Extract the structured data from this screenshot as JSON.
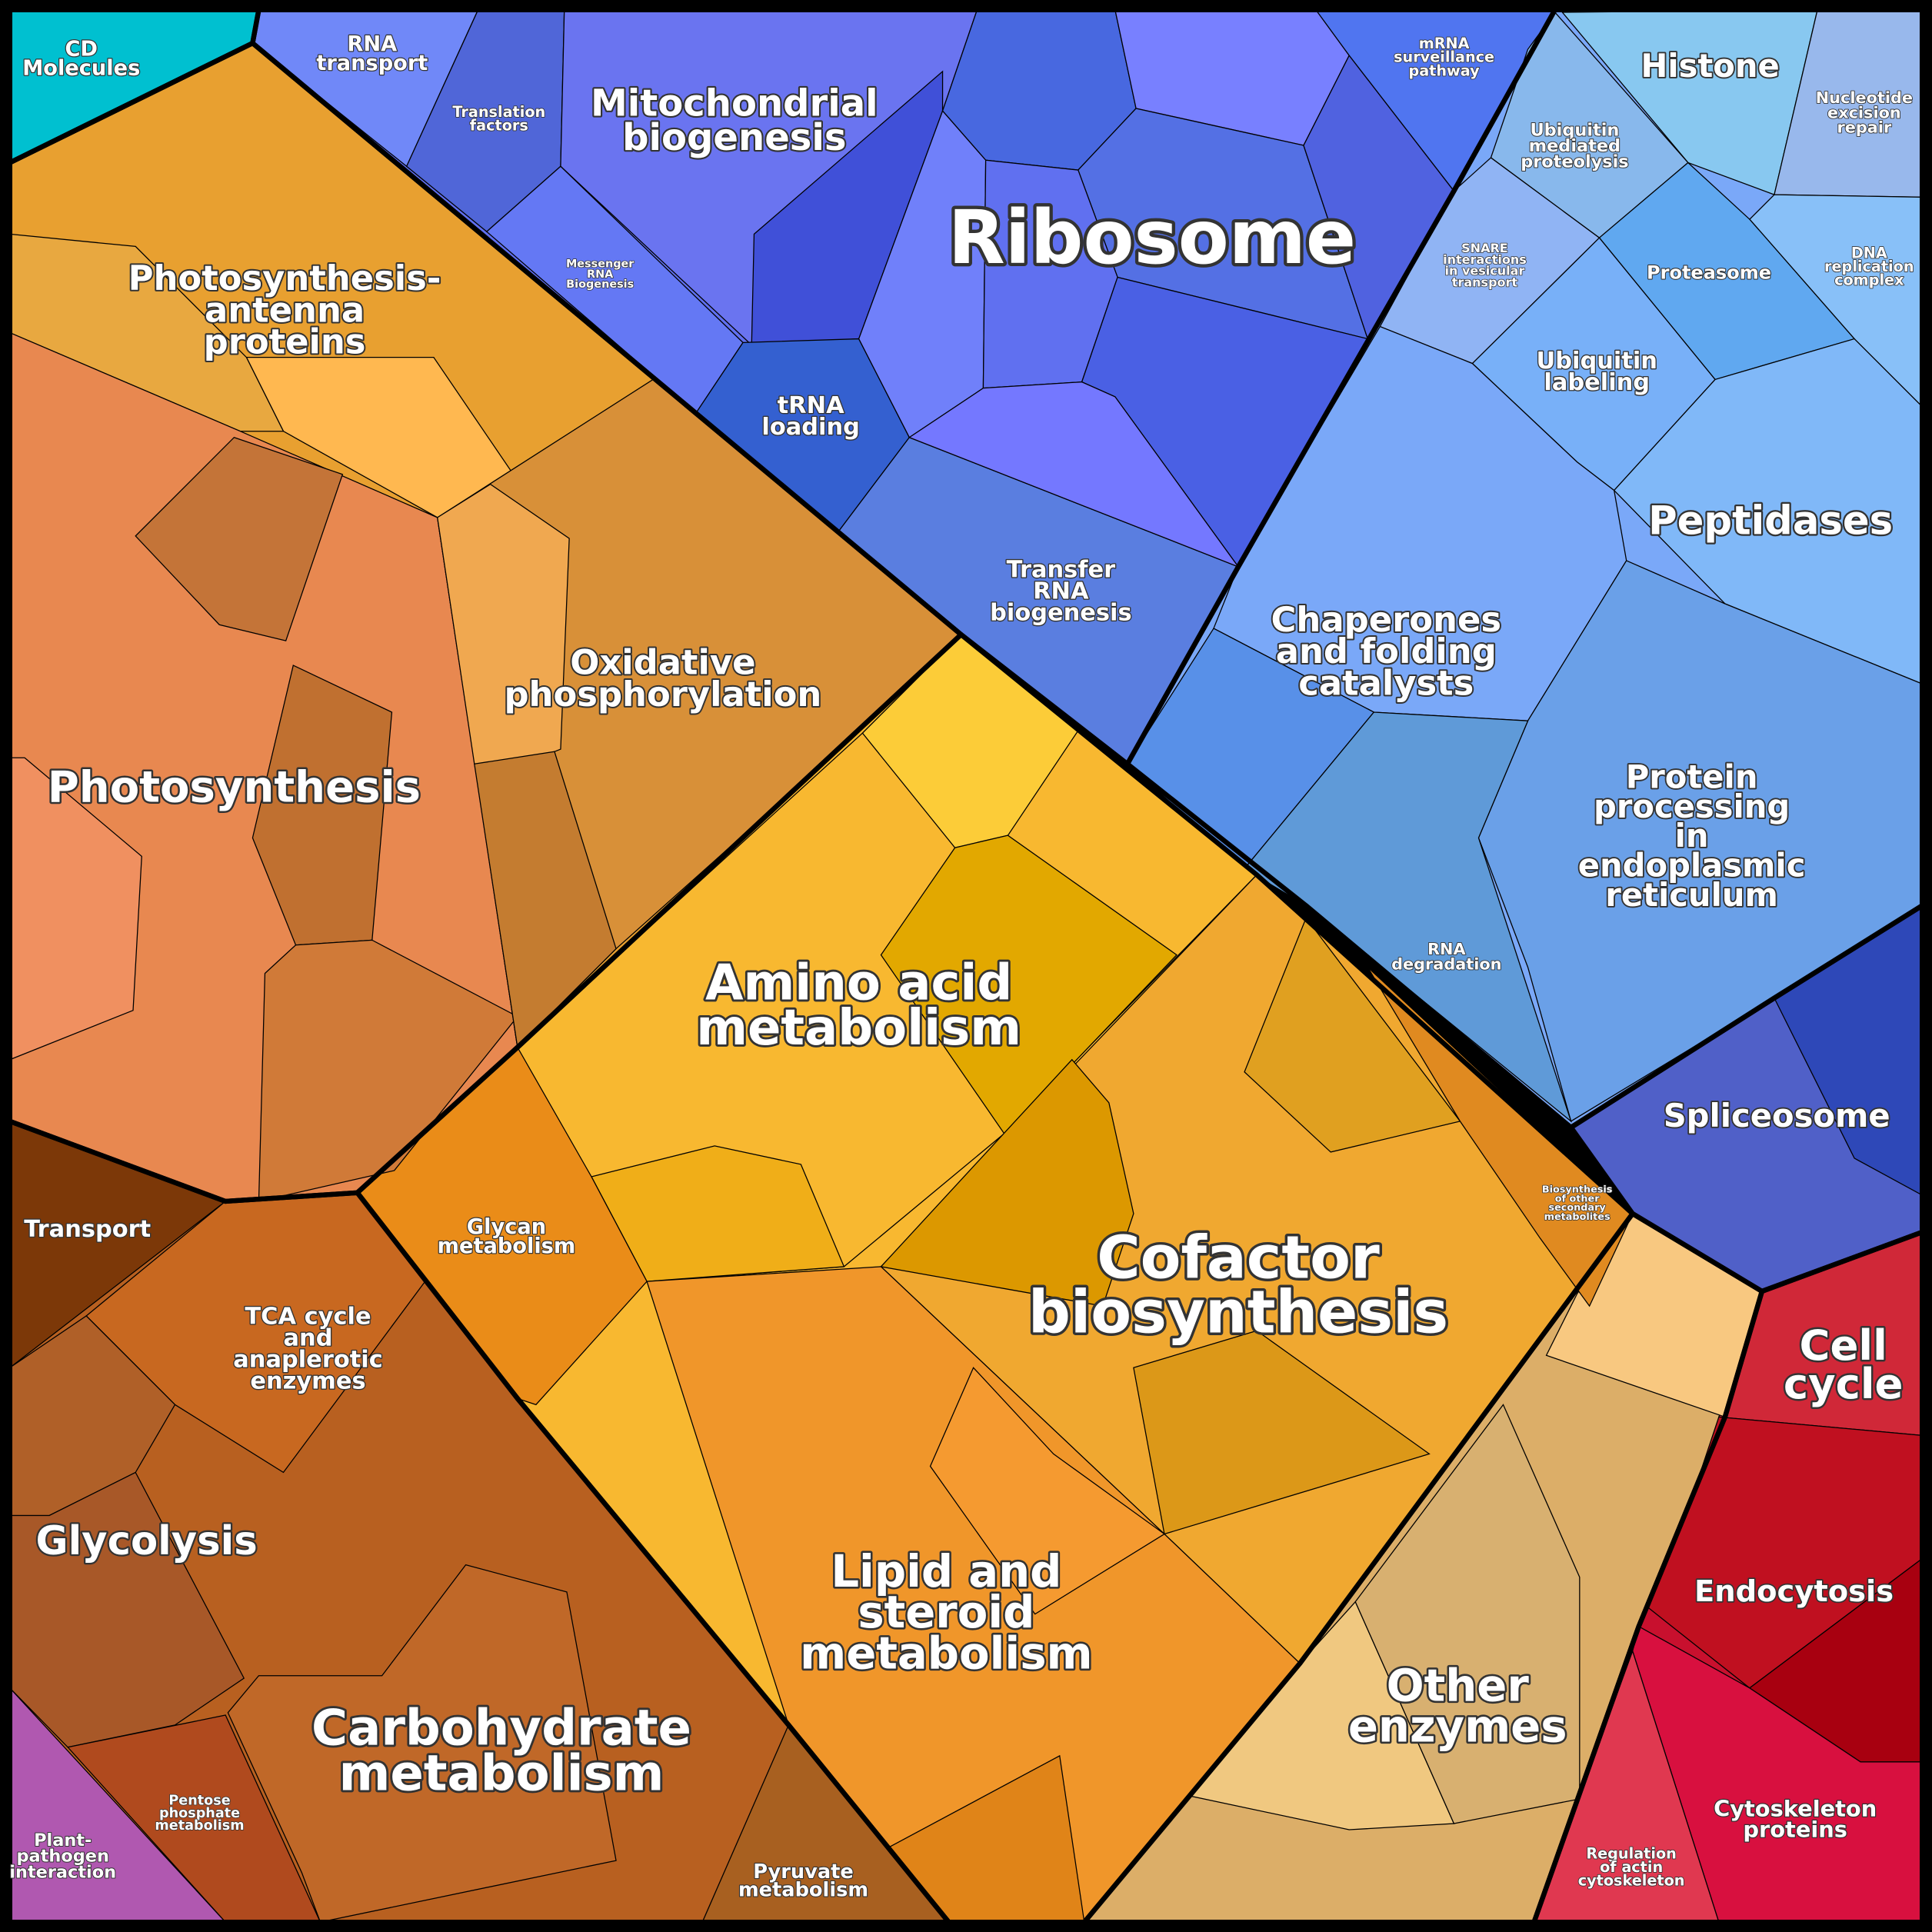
{
  "cells": [
    {
      "label": [
        "CD",
        "Molecules"
      ]
    },
    {
      "label": [
        "RNA",
        "transport"
      ]
    },
    {
      "label": [
        "Translation",
        "factors"
      ]
    },
    {
      "label": [
        "Mitochondrial",
        "biogenesis"
      ]
    },
    {
      "label": [
        "Messenger",
        "RNA",
        "Biogenesis"
      ]
    },
    {
      "label": [
        "Ribosome"
      ]
    },
    {
      "label": [
        "mRNA",
        "surveillance",
        "pathway"
      ]
    },
    {
      "label": [
        "Histone"
      ]
    },
    {
      "label": [
        "Nucleotide",
        "excision",
        "repair"
      ]
    },
    {
      "label": [
        "Ubiquitin",
        "mediated",
        "proteolysis"
      ]
    },
    {
      "label": [
        "SNARE",
        "interactions",
        "in vesicular",
        "transport"
      ]
    },
    {
      "label": [
        "Proteasome"
      ]
    },
    {
      "label": [
        "DNA",
        "replication",
        "complex"
      ]
    },
    {
      "label": [
        "Photosynthesis-",
        "antenna",
        "proteins"
      ]
    },
    {
      "label": [
        "tRNA",
        "loading"
      ]
    },
    {
      "label": [
        "Ubiquitin",
        "labeling"
      ]
    },
    {
      "label": [
        "Peptidases"
      ]
    },
    {
      "label": [
        "Transfer",
        "RNA",
        "biogenesis"
      ]
    },
    {
      "label": [
        "Chaperones",
        "and folding",
        "catalysts"
      ]
    },
    {
      "label": [
        "Oxidative",
        "phosphorylation"
      ]
    },
    {
      "label": [
        "Photosynthesis"
      ]
    },
    {
      "label": [
        "Protein",
        "processing",
        "in",
        "endoplasmic",
        "reticulum"
      ]
    },
    {
      "label": [
        "RNA",
        "degradation"
      ]
    },
    {
      "label": [
        "Amino acid",
        "metabolism"
      ]
    },
    {
      "label": [
        "Spliceosome"
      ]
    },
    {
      "label": [
        "Biosynthesis",
        "of other",
        "secondary",
        "metabolites"
      ]
    },
    {
      "label": [
        "Transport"
      ]
    },
    {
      "label": [
        "Glycan",
        "metabolism"
      ]
    },
    {
      "label": [
        "Cofactor",
        "biosynthesis"
      ]
    },
    {
      "label": [
        "TCA cycle",
        "and",
        "anaplerotic",
        "enzymes"
      ]
    },
    {
      "label": [
        "Cell",
        "cycle"
      ]
    },
    {
      "label": [
        "Glycolysis"
      ]
    },
    {
      "label": [
        "Lipid and",
        "steroid",
        "metabolism"
      ]
    },
    {
      "label": [
        "Endocytosis"
      ]
    },
    {
      "label": [
        "Other",
        "enzymes"
      ]
    },
    {
      "label": [
        "Carbohydrate",
        "metabolism"
      ]
    },
    {
      "label": [
        "Pentose",
        "phosphate",
        "metabolism"
      ]
    },
    {
      "label": [
        "Cytoskeleton",
        "proteins"
      ]
    },
    {
      "label": [
        "Pyruvate",
        "metabolism"
      ]
    },
    {
      "label": [
        "Regulation",
        "of actin",
        "cytoskeleton"
      ]
    },
    {
      "label": [
        "Plant-",
        "pathogen",
        "interaction"
      ]
    }
  ]
}
